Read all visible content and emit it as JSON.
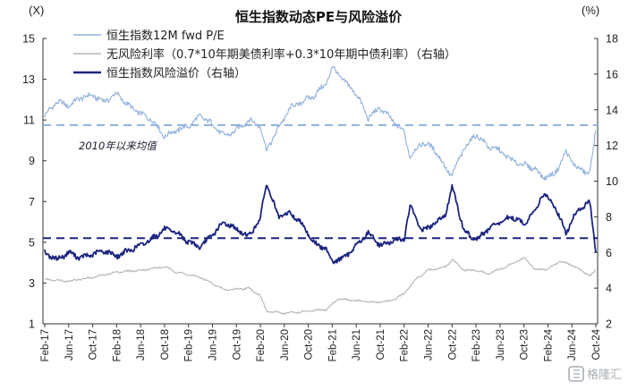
{
  "chart_data": {
    "type": "line",
    "title": "恒生指数动态PE与风险溢价",
    "left_unit": "(X)",
    "right_unit": "(%)",
    "ylim_left": [
      1,
      15
    ],
    "yticks_left": [
      "1",
      "3",
      "5",
      "7",
      "9",
      "11",
      "13",
      "15"
    ],
    "ylim_right": [
      2,
      18
    ],
    "yticks_right": [
      "2",
      "4",
      "6",
      "8",
      "10",
      "12",
      "14",
      "16",
      "18"
    ],
    "x_range": [
      "2017-02",
      "2024-10"
    ],
    "xticks": [
      "Feb-17",
      "Jun-17",
      "Oct-17",
      "Feb-18",
      "Jun-18",
      "Oct-18",
      "Feb-19",
      "Jun-19",
      "Oct-19",
      "Feb-20",
      "Jun-20",
      "Oct-20",
      "Feb-21",
      "Jun-21",
      "Oct-21",
      "Feb-22",
      "Jun-22",
      "Oct-22",
      "Feb-23",
      "Jun-23",
      "Oct-23",
      "Feb-24",
      "Jun-24",
      "Oct-24"
    ],
    "grid": false,
    "legend_position": "top-left",
    "annotation": "2010年以来均值",
    "series": [
      {
        "name": "恒生指数12M fwd P/E",
        "axis": "left",
        "color": "#8fb0db",
        "points": [
          [
            "2017-02",
            11.2
          ],
          [
            "2017-04",
            11.9
          ],
          [
            "2017-06",
            11.7
          ],
          [
            "2017-08",
            12.1
          ],
          [
            "2017-10",
            12.2
          ],
          [
            "2017-12",
            11.9
          ],
          [
            "2018-02",
            12.3
          ],
          [
            "2018-04",
            11.7
          ],
          [
            "2018-06",
            11.3
          ],
          [
            "2018-08",
            11.0
          ],
          [
            "2018-10",
            10.2
          ],
          [
            "2018-12",
            10.5
          ],
          [
            "2019-02",
            10.7
          ],
          [
            "2019-04",
            11.2
          ],
          [
            "2019-06",
            10.8
          ],
          [
            "2019-08",
            10.2
          ],
          [
            "2019-10",
            10.5
          ],
          [
            "2019-12",
            11.0
          ],
          [
            "2020-02",
            10.7
          ],
          [
            "2020-03",
            9.5
          ],
          [
            "2020-05",
            10.6
          ],
          [
            "2020-07",
            11.6
          ],
          [
            "2020-09",
            11.9
          ],
          [
            "2020-11",
            12.2
          ],
          [
            "2021-01",
            12.8
          ],
          [
            "2021-02",
            13.6
          ],
          [
            "2021-04",
            12.9
          ],
          [
            "2021-06",
            12.3
          ],
          [
            "2021-08",
            11.1
          ],
          [
            "2021-10",
            11.6
          ],
          [
            "2021-12",
            11.0
          ],
          [
            "2022-02",
            10.4
          ],
          [
            "2022-03",
            9.2
          ],
          [
            "2022-05",
            9.9
          ],
          [
            "2022-07",
            9.6
          ],
          [
            "2022-09",
            8.6
          ],
          [
            "2022-10",
            8.3
          ],
          [
            "2022-12",
            9.6
          ],
          [
            "2023-02",
            10.3
          ],
          [
            "2023-04",
            9.7
          ],
          [
            "2023-06",
            9.5
          ],
          [
            "2023-08",
            9.0
          ],
          [
            "2023-10",
            8.8
          ],
          [
            "2023-12",
            8.6
          ],
          [
            "2024-01",
            8.2
          ],
          [
            "2024-03",
            8.3
          ],
          [
            "2024-05",
            9.4
          ],
          [
            "2024-07",
            8.6
          ],
          [
            "2024-09",
            8.4
          ],
          [
            "2024-10",
            10.5
          ]
        ]
      },
      {
        "name": "无风险利率（0.7*10年期美债利率+0.3*10年期中债利率）（右轴）",
        "axis": "right",
        "color": "#b4b4b4",
        "points": [
          [
            "2017-02",
            4.5
          ],
          [
            "2017-06",
            4.4
          ],
          [
            "2017-10",
            4.6
          ],
          [
            "2018-02",
            4.9
          ],
          [
            "2018-06",
            5.0
          ],
          [
            "2018-10",
            5.2
          ],
          [
            "2018-12",
            4.9
          ],
          [
            "2019-04",
            4.6
          ],
          [
            "2019-08",
            3.9
          ],
          [
            "2019-12",
            4.0
          ],
          [
            "2020-02",
            3.6
          ],
          [
            "2020-03",
            2.7
          ],
          [
            "2020-06",
            2.6
          ],
          [
            "2020-10",
            2.7
          ],
          [
            "2021-01",
            2.8
          ],
          [
            "2021-03",
            3.4
          ],
          [
            "2021-06",
            3.3
          ],
          [
            "2021-09",
            3.2
          ],
          [
            "2021-12",
            3.3
          ],
          [
            "2022-02",
            3.7
          ],
          [
            "2022-04",
            4.5
          ],
          [
            "2022-06",
            5.0
          ],
          [
            "2022-09",
            5.2
          ],
          [
            "2022-10",
            5.6
          ],
          [
            "2022-12",
            5.0
          ],
          [
            "2023-02",
            5.0
          ],
          [
            "2023-04",
            4.8
          ],
          [
            "2023-07",
            5.2
          ],
          [
            "2023-10",
            5.7
          ],
          [
            "2023-12",
            5.0
          ],
          [
            "2024-02",
            5.1
          ],
          [
            "2024-04",
            5.5
          ],
          [
            "2024-06",
            5.3
          ],
          [
            "2024-09",
            4.7
          ],
          [
            "2024-10",
            5.0
          ]
        ]
      },
      {
        "name": "恒生指数风险溢价（右轴）",
        "axis": "right",
        "color": "#1c2580",
        "points": [
          [
            "2017-02",
            6.0
          ],
          [
            "2017-04",
            5.6
          ],
          [
            "2017-06",
            6.0
          ],
          [
            "2017-08",
            5.7
          ],
          [
            "2017-10",
            5.9
          ],
          [
            "2017-12",
            6.1
          ],
          [
            "2018-02",
            5.8
          ],
          [
            "2018-04",
            6.1
          ],
          [
            "2018-06",
            6.4
          ],
          [
            "2018-08",
            6.8
          ],
          [
            "2018-10",
            7.3
          ],
          [
            "2018-12",
            7.1
          ],
          [
            "2019-02",
            6.6
          ],
          [
            "2019-04",
            6.3
          ],
          [
            "2019-06",
            7.0
          ],
          [
            "2019-08",
            7.7
          ],
          [
            "2019-10",
            7.3
          ],
          [
            "2019-12",
            6.9
          ],
          [
            "2020-02",
            7.9
          ],
          [
            "2020-03",
            9.9
          ],
          [
            "2020-05",
            8.0
          ],
          [
            "2020-07",
            8.2
          ],
          [
            "2020-09",
            7.6
          ],
          [
            "2020-11",
            6.5
          ],
          [
            "2021-01",
            6.2
          ],
          [
            "2021-02",
            5.5
          ],
          [
            "2021-04",
            5.7
          ],
          [
            "2021-06",
            6.4
          ],
          [
            "2021-08",
            7.1
          ],
          [
            "2021-10",
            6.4
          ],
          [
            "2021-12",
            6.6
          ],
          [
            "2022-02",
            6.8
          ],
          [
            "2022-03",
            8.6
          ],
          [
            "2022-05",
            7.2
          ],
          [
            "2022-07",
            7.6
          ],
          [
            "2022-09",
            8.2
          ],
          [
            "2022-10",
            9.7
          ],
          [
            "2022-12",
            7.2
          ],
          [
            "2023-02",
            6.7
          ],
          [
            "2023-04",
            7.3
          ],
          [
            "2023-06",
            7.7
          ],
          [
            "2023-08",
            8.0
          ],
          [
            "2023-10",
            7.6
          ],
          [
            "2023-12",
            8.4
          ],
          [
            "2024-01",
            9.3
          ],
          [
            "2024-03",
            8.7
          ],
          [
            "2024-05",
            7.1
          ],
          [
            "2024-07",
            8.4
          ],
          [
            "2024-09",
            8.8
          ],
          [
            "2024-10",
            6.0
          ]
        ]
      }
    ],
    "reference_lines": [
      {
        "axis": "left",
        "value": 10.75,
        "color": "#8fb0db",
        "style": "dashed"
      },
      {
        "axis": "left",
        "value": 5.2,
        "color": "#1c2580",
        "style": "dashed"
      }
    ]
  },
  "watermark": {
    "text": "格隆汇",
    "icon": "gelonghui-logo-icon"
  }
}
